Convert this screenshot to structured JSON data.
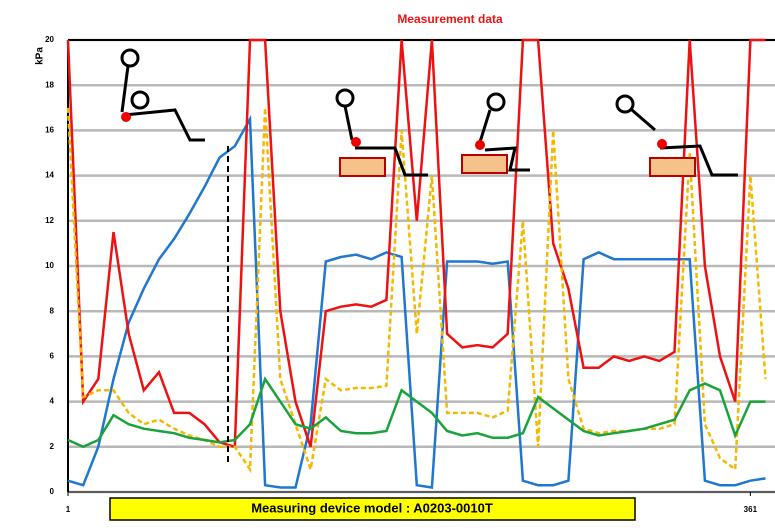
{
  "chart_data": {
    "type": "line",
    "title": "Measurement data",
    "y_label": "kPa",
    "annotation": "Measuring device model :   A0203-0010T",
    "x": [
      1,
      9,
      17,
      25,
      33,
      41,
      49,
      57,
      65,
      73,
      81,
      89,
      97,
      105,
      113,
      121,
      129,
      137,
      145,
      153,
      161,
      169,
      177,
      185,
      193,
      201,
      209,
      217,
      225,
      233,
      241,
      249,
      257,
      265,
      273,
      281,
      289,
      297,
      305,
      313,
      321,
      329,
      337,
      345,
      353,
      361,
      369
    ],
    "xlim": [
      1,
      374
    ],
    "xticks": [
      1,
      361
    ],
    "ylim": [
      0,
      20
    ],
    "yticks": [
      0,
      2,
      4,
      6,
      8,
      10,
      12,
      14,
      16,
      18,
      20
    ],
    "grid": true,
    "series": [
      {
        "color": "#1f77d0",
        "style": "solid",
        "values": [
          0.5,
          0.3,
          2,
          5,
          7.5,
          9,
          10.3,
          11.2,
          12.3,
          13.5,
          14.8,
          15.3,
          16.5,
          0.3,
          0.2,
          0.2,
          3,
          10.2,
          10.4,
          10.5,
          10.3,
          10.6,
          10.4,
          0.3,
          0.2,
          10.2,
          10.2,
          10.2,
          10.1,
          10.2,
          0.5,
          0.3,
          0.3,
          0.5,
          10.3,
          10.6,
          10.3,
          10.3,
          10.3,
          10.3,
          10.3,
          10.3,
          0.5,
          0.3,
          0.3,
          0.5,
          0.6
        ]
      },
      {
        "color": "#ee1111",
        "style": "solid",
        "values": [
          20,
          4,
          5,
          11.5,
          7,
          4.5,
          5.3,
          3.5,
          3.5,
          3,
          2.2,
          2,
          20,
          20,
          8,
          4,
          2,
          8,
          8.2,
          8.3,
          8.2,
          8.5,
          20,
          12,
          20,
          7,
          6.4,
          6.5,
          6.4,
          7,
          20,
          20,
          11,
          9,
          5.5,
          5.5,
          6,
          5.8,
          6,
          5.8,
          6.2,
          20,
          10,
          6,
          4,
          20,
          20
        ]
      },
      {
        "color": "#f5b800",
        "style": "dashed",
        "values": [
          17,
          4.2,
          4.5,
          4.5,
          3.5,
          3,
          3.2,
          2.8,
          2.5,
          2.3,
          2,
          2,
          1,
          17,
          5,
          3,
          1,
          5,
          4.5,
          4.6,
          4.6,
          4.7,
          16,
          7,
          14,
          3.5,
          3.5,
          3.5,
          3.3,
          3.6,
          12,
          2,
          16,
          5,
          2.8,
          2.6,
          2.7,
          2.7,
          2.8,
          2.8,
          3,
          15,
          3,
          1.5,
          1,
          14,
          5
        ]
      },
      {
        "color": "#1aa33a",
        "style": "solid",
        "values": [
          2.3,
          2,
          2.3,
          3.4,
          3,
          2.8,
          2.7,
          2.6,
          2.4,
          2.3,
          2.2,
          2.3,
          3,
          5,
          4,
          3,
          2.8,
          3.3,
          2.7,
          2.6,
          2.6,
          2.7,
          4.5,
          4,
          3.5,
          2.7,
          2.5,
          2.6,
          2.4,
          2.4,
          2.6,
          4.2,
          3.7,
          3.2,
          2.7,
          2.5,
          2.6,
          2.7,
          2.8,
          3,
          3.2,
          4.5,
          4.8,
          4.5,
          2.5,
          4,
          4
        ]
      }
    ]
  }
}
